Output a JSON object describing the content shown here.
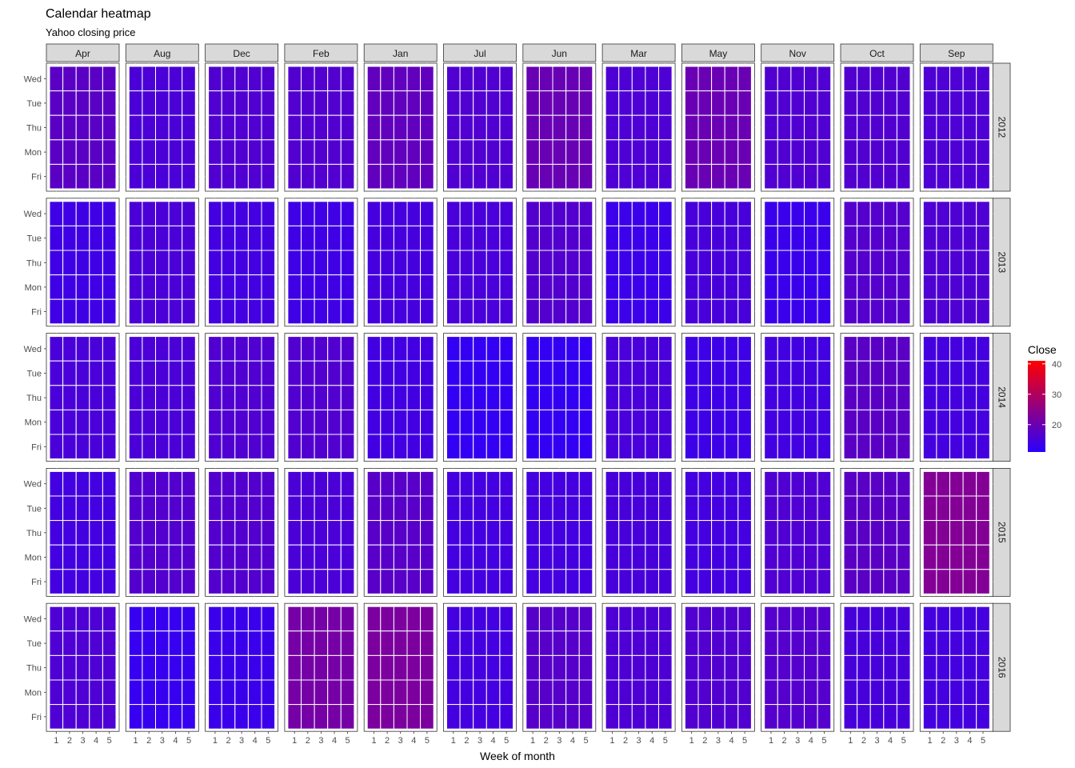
{
  "chart_data": {
    "type": "heatmap",
    "title": "Calendar heatmap",
    "subtitle": "Yahoo closing price",
    "xlabel": "Week of month",
    "ylabel": "",
    "x_ticks": [
      "1",
      "2",
      "3",
      "4",
      "5"
    ],
    "y_ticks": [
      "Wed",
      "Tue",
      "Thu",
      "Mon",
      "Fri"
    ],
    "months": [
      "Apr",
      "Aug",
      "Dec",
      "Feb",
      "Jan",
      "Jul",
      "Jun",
      "Mar",
      "May",
      "Nov",
      "Oct",
      "Sep"
    ],
    "years": [
      "2012",
      "2013",
      "2014",
      "2015",
      "2016"
    ],
    "legend": {
      "title": "Close",
      "min": 11,
      "max": 41,
      "ticks": [
        20,
        30,
        40
      ],
      "low_color": "#2a00ff",
      "high_color": "#ff0000"
    },
    "close_by_year_month": {
      "2012": {
        "Apr": 17.8,
        "Aug": 15.7,
        "Dec": 16.4,
        "Feb": 16.6,
        "Jan": 18.8,
        "Jul": 16.4,
        "Jun": 19.8,
        "Mar": 16.0,
        "May": 20.0,
        "Nov": 16.4,
        "Oct": 16.5,
        "Sep": 16.0
      },
      "2013": {
        "Apr": 14.0,
        "Aug": 15.6,
        "Dec": 14.5,
        "Feb": 14.0,
        "Jan": 14.9,
        "Jul": 15.3,
        "Jun": 16.8,
        "Mar": 13.5,
        "May": 15.2,
        "Nov": 13.2,
        "Oct": 17.0,
        "Sep": 16.2
      },
      "2014": {
        "Apr": 15.5,
        "Aug": 15.6,
        "Dec": 16.4,
        "Feb": 16.6,
        "Jan": 14.4,
        "Jul": 12.4,
        "Jun": 12.4,
        "Mar": 15.3,
        "May": 13.8,
        "Nov": 14.5,
        "Oct": 17.8,
        "Sep": 14.8
      },
      "2015": {
        "Apr": 14.5,
        "Aug": 16.8,
        "Dec": 16.8,
        "Feb": 15.6,
        "Jan": 17.5,
        "Jul": 14.6,
        "Jun": 14.6,
        "Mar": 15.2,
        "May": 14.7,
        "Nov": 16.3,
        "Oct": 17.8,
        "Sep": 23.5
      },
      "2016": {
        "Apr": 16.0,
        "Aug": 12.8,
        "Dec": 13.4,
        "Feb": 21.5,
        "Jan": 22.4,
        "Jul": 14.6,
        "Jun": 17.2,
        "Mar": 16.1,
        "May": 16.5,
        "Nov": 17.0,
        "Oct": 15.2,
        "Sep": 14.8
      }
    },
    "grid": true,
    "legend_position": "right"
  }
}
